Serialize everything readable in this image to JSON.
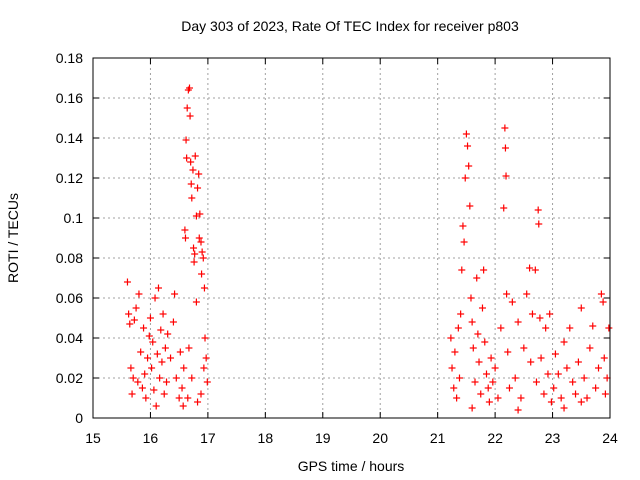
{
  "chart_data": {
    "type": "scatter",
    "title": "Day 303 of 2023, Rate Of TEC Index for receiver p803",
    "xlabel": "GPS time / hours",
    "ylabel": "ROTI / TECUs",
    "xlim": [
      15,
      24
    ],
    "ylim": [
      0,
      0.18
    ],
    "grid": true,
    "marker": "+",
    "color": "#ff0000",
    "x_ticks": [
      "15",
      "16",
      "17",
      "18",
      "19",
      "20",
      "21",
      "22",
      "23",
      "24"
    ],
    "y_ticks": [
      "0",
      "0.02",
      "0.04",
      "0.06",
      "0.08",
      "0.1",
      "0.12",
      "0.14",
      "0.16",
      "0.18"
    ],
    "series": [
      {
        "name": "ROTI",
        "points": [
          [
            15.6,
            0.068
          ],
          [
            15.62,
            0.052
          ],
          [
            15.64,
            0.047
          ],
          [
            15.66,
            0.025
          ],
          [
            15.68,
            0.012
          ],
          [
            15.7,
            0.02
          ],
          [
            15.72,
            0.049
          ],
          [
            15.75,
            0.055
          ],
          [
            15.78,
            0.018
          ],
          [
            15.8,
            0.062
          ],
          [
            15.83,
            0.033
          ],
          [
            15.86,
            0.015
          ],
          [
            15.88,
            0.045
          ],
          [
            15.9,
            0.022
          ],
          [
            15.92,
            0.01
          ],
          [
            15.95,
            0.03
          ],
          [
            15.98,
            0.041
          ],
          [
            16.0,
            0.05
          ],
          [
            16.02,
            0.025
          ],
          [
            16.04,
            0.038
          ],
          [
            16.06,
            0.014
          ],
          [
            16.08,
            0.06
          ],
          [
            16.1,
            0.006
          ],
          [
            16.12,
            0.032
          ],
          [
            16.14,
            0.065
          ],
          [
            16.16,
            0.02
          ],
          [
            16.18,
            0.044
          ],
          [
            16.2,
            0.028
          ],
          [
            16.22,
            0.052
          ],
          [
            16.24,
            0.012
          ],
          [
            16.26,
            0.035
          ],
          [
            16.28,
            0.018
          ],
          [
            16.3,
            0.042
          ],
          [
            16.35,
            0.03
          ],
          [
            16.4,
            0.048
          ],
          [
            16.42,
            0.062
          ],
          [
            16.45,
            0.02
          ],
          [
            16.5,
            0.01
          ],
          [
            16.52,
            0.033
          ],
          [
            16.55,
            0.015
          ],
          [
            16.58,
            0.025
          ],
          [
            16.6,
            0.094
          ],
          [
            16.61,
            0.09
          ],
          [
            16.62,
            0.139
          ],
          [
            16.63,
            0.13
          ],
          [
            16.64,
            0.155
          ],
          [
            16.66,
            0.164
          ],
          [
            16.68,
            0.165
          ],
          [
            16.69,
            0.151
          ],
          [
            16.7,
            0.128
          ],
          [
            16.71,
            0.117
          ],
          [
            16.72,
            0.11
          ],
          [
            16.74,
            0.124
          ],
          [
            16.75,
            0.085
          ],
          [
            16.76,
            0.078
          ],
          [
            16.77,
            0.082
          ],
          [
            16.78,
            0.131
          ],
          [
            16.8,
            0.101
          ],
          [
            16.82,
            0.115
          ],
          [
            16.84,
            0.122
          ],
          [
            16.85,
            0.09
          ],
          [
            16.86,
            0.102
          ],
          [
            16.88,
            0.088
          ],
          [
            16.89,
            0.072
          ],
          [
            16.9,
            0.083
          ],
          [
            16.92,
            0.08
          ],
          [
            16.94,
            0.065
          ],
          [
            16.95,
            0.04
          ],
          [
            16.97,
            0.03
          ],
          [
            16.99,
            0.018
          ],
          [
            16.65,
            0.01
          ],
          [
            16.72,
            0.02
          ],
          [
            16.8,
            0.058
          ],
          [
            16.88,
            0.012
          ],
          [
            16.93,
            0.025
          ],
          [
            16.67,
            0.035
          ],
          [
            16.82,
            0.008
          ],
          [
            16.57,
            0.006
          ],
          [
            21.23,
            0.04
          ],
          [
            21.25,
            0.025
          ],
          [
            21.28,
            0.015
          ],
          [
            21.3,
            0.033
          ],
          [
            21.33,
            0.01
          ],
          [
            21.36,
            0.045
          ],
          [
            21.38,
            0.02
          ],
          [
            21.4,
            0.052
          ],
          [
            21.42,
            0.074
          ],
          [
            21.44,
            0.096
          ],
          [
            21.46,
            0.088
          ],
          [
            21.48,
            0.12
          ],
          [
            21.5,
            0.142
          ],
          [
            21.52,
            0.136
          ],
          [
            21.54,
            0.126
          ],
          [
            21.56,
            0.106
          ],
          [
            21.58,
            0.06
          ],
          [
            21.6,
            0.048
          ],
          [
            21.62,
            0.035
          ],
          [
            21.65,
            0.018
          ],
          [
            21.68,
            0.07
          ],
          [
            21.7,
            0.042
          ],
          [
            21.72,
            0.028
          ],
          [
            21.75,
            0.012
          ],
          [
            21.78,
            0.055
          ],
          [
            21.8,
            0.074
          ],
          [
            21.82,
            0.038
          ],
          [
            21.85,
            0.022
          ],
          [
            21.88,
            0.015
          ],
          [
            21.9,
            0.008
          ],
          [
            21.93,
            0.03
          ],
          [
            21.96,
            0.018
          ],
          [
            22.0,
            0.025
          ],
          [
            22.05,
            0.01
          ],
          [
            22.1,
            0.045
          ],
          [
            22.15,
            0.105
          ],
          [
            22.17,
            0.145
          ],
          [
            22.18,
            0.135
          ],
          [
            22.19,
            0.121
          ],
          [
            22.2,
            0.062
          ],
          [
            22.22,
            0.033
          ],
          [
            22.25,
            0.015
          ],
          [
            22.3,
            0.058
          ],
          [
            22.35,
            0.02
          ],
          [
            22.4,
            0.048
          ],
          [
            22.45,
            0.01
          ],
          [
            22.5,
            0.035
          ],
          [
            22.55,
            0.062
          ],
          [
            22.6,
            0.075
          ],
          [
            22.62,
            0.028
          ],
          [
            22.65,
            0.052
          ],
          [
            22.7,
            0.074
          ],
          [
            22.72,
            0.018
          ],
          [
            22.75,
            0.104
          ],
          [
            22.76,
            0.097
          ],
          [
            22.78,
            0.05
          ],
          [
            22.8,
            0.03
          ],
          [
            22.85,
            0.012
          ],
          [
            22.88,
            0.045
          ],
          [
            22.92,
            0.022
          ],
          [
            22.95,
            0.052
          ],
          [
            22.98,
            0.008
          ],
          [
            23.02,
            0.015
          ],
          [
            23.05,
            0.032
          ],
          [
            23.1,
            0.022
          ],
          [
            23.15,
            0.01
          ],
          [
            23.2,
            0.038
          ],
          [
            23.25,
            0.025
          ],
          [
            23.3,
            0.045
          ],
          [
            23.35,
            0.018
          ],
          [
            23.4,
            0.012
          ],
          [
            23.45,
            0.028
          ],
          [
            23.5,
            0.055
          ],
          [
            23.55,
            0.02
          ],
          [
            23.6,
            0.01
          ],
          [
            23.65,
            0.035
          ],
          [
            23.7,
            0.046
          ],
          [
            23.75,
            0.015
          ],
          [
            23.8,
            0.025
          ],
          [
            23.85,
            0.062
          ],
          [
            23.88,
            0.058
          ],
          [
            23.9,
            0.03
          ],
          [
            23.92,
            0.012
          ],
          [
            23.95,
            0.02
          ],
          [
            23.98,
            0.045
          ],
          [
            23.5,
            0.008
          ],
          [
            23.2,
            0.005
          ],
          [
            22.4,
            0.004
          ],
          [
            21.6,
            0.005
          ]
        ]
      }
    ]
  }
}
